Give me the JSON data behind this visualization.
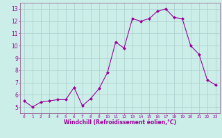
{
  "x": [
    0,
    1,
    2,
    3,
    4,
    5,
    6,
    7,
    8,
    9,
    10,
    11,
    12,
    13,
    14,
    15,
    16,
    17,
    18,
    19,
    20,
    21,
    22,
    23
  ],
  "y": [
    5.5,
    5.0,
    5.4,
    5.5,
    5.6,
    5.6,
    6.6,
    5.1,
    5.7,
    6.5,
    7.8,
    10.3,
    9.8,
    12.2,
    12.0,
    12.2,
    12.8,
    13.0,
    12.3,
    12.2,
    10.0,
    9.3,
    7.2,
    6.8
  ],
  "line_color": "#990099",
  "marker": "D",
  "marker_size": 2.0,
  "bg_color": "#cceee8",
  "grid_color": "#aacccc",
  "xlabel": "Windchill (Refroidissement éolien,°C)",
  "xlabel_color": "#990099",
  "tick_color": "#990099",
  "spine_color": "#996699",
  "xlim": [
    -0.5,
    23.5
  ],
  "ylim": [
    4.5,
    13.5
  ],
  "yticks": [
    5,
    6,
    7,
    8,
    9,
    10,
    11,
    12,
    13
  ],
  "xticks": [
    0,
    1,
    2,
    3,
    4,
    5,
    6,
    7,
    8,
    9,
    10,
    11,
    12,
    13,
    14,
    15,
    16,
    17,
    18,
    19,
    20,
    21,
    22,
    23
  ],
  "xlabel_fontsize": 5.5,
  "xtick_fontsize": 4.2,
  "ytick_fontsize": 5.5
}
